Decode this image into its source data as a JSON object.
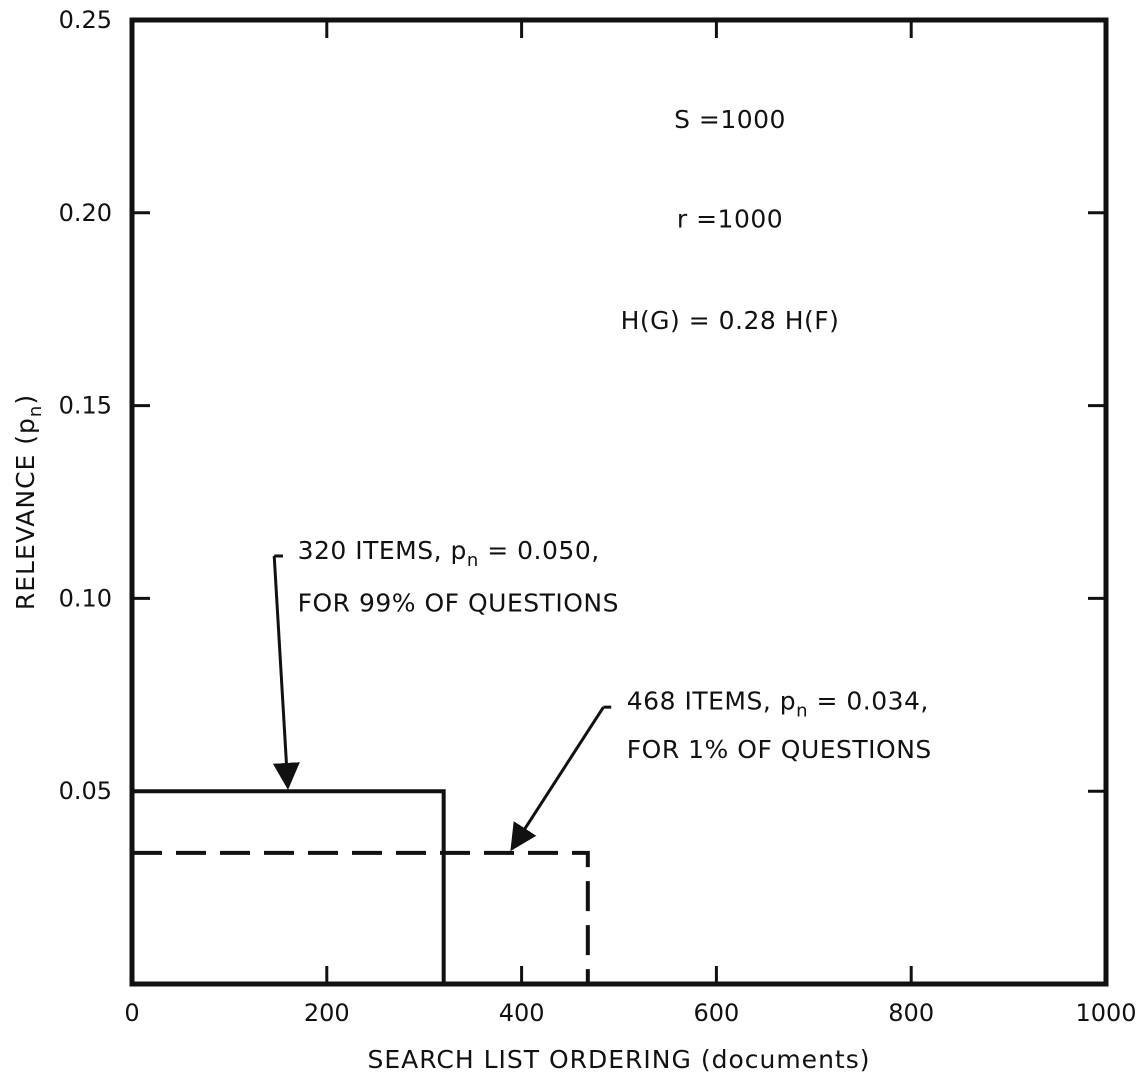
{
  "chart_data": {
    "type": "line",
    "title": "",
    "xlabel": "SEARCH LIST ORDERING (documents)",
    "ylabel_main": "RELEVANCE (p",
    "ylabel_sub": "n",
    "ylabel_close": ")",
    "xlim": [
      0,
      1000
    ],
    "ylim": [
      0,
      0.25
    ],
    "x_ticks": [
      0,
      200,
      400,
      600,
      800,
      1000
    ],
    "x_tick_labels": [
      "0",
      "200",
      "400",
      "600",
      "800",
      "1000"
    ],
    "y_ticks": [
      0.05,
      0.1,
      0.15,
      0.2,
      0.25
    ],
    "y_tick_labels": [
      "0.05",
      "0.10",
      "0.15",
      "0.20",
      "0.25"
    ],
    "grid": false,
    "series": [
      {
        "style": "solid",
        "items": 320,
        "value": 0.05,
        "points": [
          [
            0,
            0.05
          ],
          [
            320,
            0.05
          ],
          [
            320,
            0
          ]
        ]
      },
      {
        "style": "dashed",
        "items": 468,
        "value": 0.034,
        "points": [
          [
            0,
            0.034
          ],
          [
            468,
            0.034
          ],
          [
            468,
            0
          ]
        ]
      }
    ],
    "annotations": [
      {
        "line1_a": "320 ITEMS, p",
        "line1_sub": "n",
        "line1_b": " = 0.050,",
        "line2": "FOR 99% OF QUESTIONS",
        "target": [
          160,
          0.05
        ]
      },
      {
        "line1_a": "468 ITEMS, p",
        "line1_sub": "n",
        "line1_b": " = 0.034,",
        "line2": "FOR 1% OF QUESTIONS",
        "target": [
          390,
          0.034
        ]
      }
    ],
    "parameters": [
      "S =1000",
      "r =1000",
      "H(G) = 0.28 H(F)"
    ]
  }
}
